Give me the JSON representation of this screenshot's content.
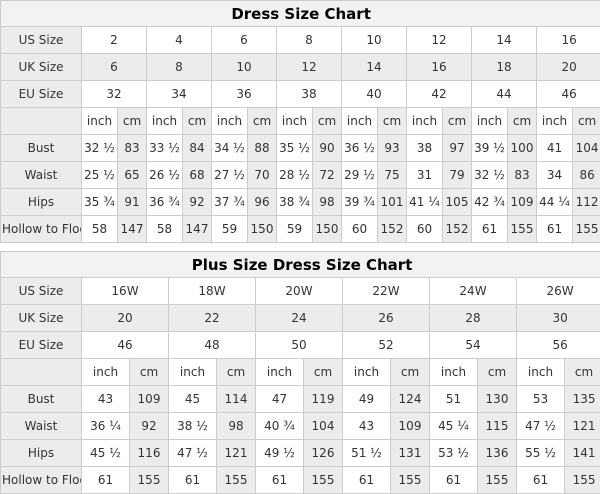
{
  "colors": {
    "title_bg": "#f2f2f2",
    "shaded_cell_bg": "#ececec",
    "cell_bg": "#ffffff",
    "border": "#cccccc",
    "text": "#333333"
  },
  "tables": [
    {
      "title": "Dress Size Chart",
      "size_rows": [
        {
          "label": "US Size",
          "values": [
            "2",
            "4",
            "6",
            "8",
            "10",
            "12",
            "14",
            "16"
          ]
        },
        {
          "label": "UK Size",
          "values": [
            "6",
            "8",
            "10",
            "12",
            "14",
            "16",
            "18",
            "20"
          ]
        },
        {
          "label": "EU Size",
          "values": [
            "32",
            "34",
            "36",
            "38",
            "40",
            "42",
            "44",
            "46"
          ]
        }
      ],
      "unit_row": {
        "inch": "inch",
        "cm": "cm"
      },
      "measure_rows": [
        {
          "label": "Bust",
          "pairs": [
            [
              "32 ½",
              "83"
            ],
            [
              "33 ½",
              "84"
            ],
            [
              "34 ½",
              "88"
            ],
            [
              "35 ½",
              "90"
            ],
            [
              "36 ½",
              "93"
            ],
            [
              "38",
              "97"
            ],
            [
              "39 ½",
              "100"
            ],
            [
              "41",
              "104"
            ]
          ]
        },
        {
          "label": "Waist",
          "pairs": [
            [
              "25 ½",
              "65"
            ],
            [
              "26 ½",
              "68"
            ],
            [
              "27 ½",
              "70"
            ],
            [
              "28 ½",
              "72"
            ],
            [
              "29 ½",
              "75"
            ],
            [
              "31",
              "79"
            ],
            [
              "32 ½",
              "83"
            ],
            [
              "34",
              "86"
            ]
          ]
        },
        {
          "label": "Hips",
          "pairs": [
            [
              "35 ¾",
              "91"
            ],
            [
              "36 ¾",
              "92"
            ],
            [
              "37 ¾",
              "96"
            ],
            [
              "38 ¾",
              "98"
            ],
            [
              "39 ¾",
              "101"
            ],
            [
              "41 ¼",
              "105"
            ],
            [
              "42 ¾",
              "109"
            ],
            [
              "44 ¼",
              "112"
            ]
          ]
        },
        {
          "label": "Hollow to Floor",
          "pairs": [
            [
              "58",
              "147"
            ],
            [
              "58",
              "147"
            ],
            [
              "59",
              "150"
            ],
            [
              "59",
              "150"
            ],
            [
              "60",
              "152"
            ],
            [
              "60",
              "152"
            ],
            [
              "61",
              "155"
            ],
            [
              "61",
              "155"
            ]
          ]
        }
      ]
    },
    {
      "title": "Plus Size Dress Size Chart",
      "size_rows": [
        {
          "label": "US Size",
          "values": [
            "16W",
            "18W",
            "20W",
            "22W",
            "24W",
            "26W"
          ]
        },
        {
          "label": "UK Size",
          "values": [
            "20",
            "22",
            "24",
            "26",
            "28",
            "30"
          ]
        },
        {
          "label": "EU Size",
          "values": [
            "46",
            "48",
            "50",
            "52",
            "54",
            "56"
          ]
        }
      ],
      "unit_row": {
        "inch": "inch",
        "cm": "cm"
      },
      "measure_rows": [
        {
          "label": "Bust",
          "pairs": [
            [
              "43",
              "109"
            ],
            [
              "45",
              "114"
            ],
            [
              "47",
              "119"
            ],
            [
              "49",
              "124"
            ],
            [
              "51",
              "130"
            ],
            [
              "53",
              "135"
            ]
          ]
        },
        {
          "label": "Waist",
          "pairs": [
            [
              "36 ¼",
              "92"
            ],
            [
              "38 ½",
              "98"
            ],
            [
              "40 ¾",
              "104"
            ],
            [
              "43",
              "109"
            ],
            [
              "45 ¼",
              "115"
            ],
            [
              "47 ½",
              "121"
            ]
          ]
        },
        {
          "label": "Hips",
          "pairs": [
            [
              "45 ½",
              "116"
            ],
            [
              "47 ½",
              "121"
            ],
            [
              "49 ½",
              "126"
            ],
            [
              "51 ½",
              "131"
            ],
            [
              "53 ½",
              "136"
            ],
            [
              "55 ½",
              "141"
            ]
          ]
        },
        {
          "label": "Hollow to Floor",
          "pairs": [
            [
              "61",
              "155"
            ],
            [
              "61",
              "155"
            ],
            [
              "61",
              "155"
            ],
            [
              "61",
              "155"
            ],
            [
              "61",
              "155"
            ],
            [
              "61",
              "155"
            ]
          ]
        }
      ]
    }
  ]
}
